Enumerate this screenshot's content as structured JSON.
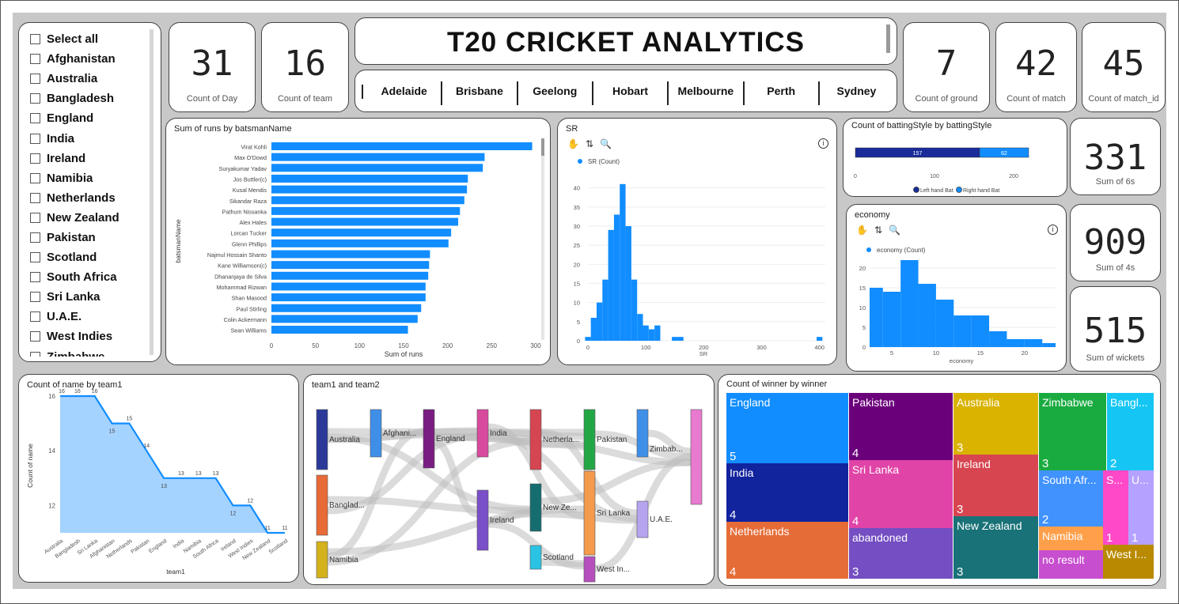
{
  "title": "T20 CRICKET ANALYTICS",
  "kpis": {
    "day": {
      "value": "31",
      "label": "Count of Day"
    },
    "team": {
      "value": "16",
      "label": "Count of team"
    },
    "ground": {
      "value": "7",
      "label": "Count of ground"
    },
    "match": {
      "value": "42",
      "label": "Count of match"
    },
    "match_id": {
      "value": "45",
      "label": "Count of match_id"
    },
    "sixes": {
      "value": "331",
      "label": "Sum of 6s"
    },
    "fours": {
      "value": "909",
      "label": "Sum of 4s"
    },
    "wickets": {
      "value": "515",
      "label": "Sum of wickets"
    }
  },
  "slicer": {
    "items": [
      "Select all",
      "Afghanistan",
      "Australia",
      "Bangladesh",
      "England",
      "India",
      "Ireland",
      "Namibia",
      "Netherlands",
      "New Zealand",
      "Pakistan",
      "Scotland",
      "South Africa",
      "Sri Lanka",
      "U.A.E.",
      "West Indies",
      "Zimbabwe"
    ]
  },
  "venues": [
    "Adelaide",
    "Brisbane",
    "Geelong",
    "Hobart",
    "Melbourne",
    "Perth",
    "Sydney"
  ],
  "runs_chart": {
    "title": "Sum of runs by batsmanName",
    "xlabel": "Sum of runs",
    "ylabel": "batsmanName",
    "chart_data": {
      "type": "bar",
      "orientation": "horizontal",
      "xlim": [
        0,
        300
      ],
      "ticks": [
        0,
        50,
        100,
        150,
        200,
        250,
        300
      ],
      "categories": [
        "Virat Kohli",
        "Max O'Dowd",
        "Suryakumar Yadav",
        "Jos Buttler(c)",
        "Kusal Mendis",
        "Sikandar Raza",
        "Pathum Nissanka",
        "Alex Hales",
        "Lorcan Tucker",
        "Glenn Phillips",
        "Najmul Hossain Shanto",
        "Kane Williamson(c)",
        "Dhananjaya de Silva",
        "Mohammad Rizwan",
        "Shan Masood",
        "Paul Stirling",
        "Colin Ackermann",
        "Sean Williams"
      ],
      "values": [
        296,
        242,
        240,
        223,
        222,
        219,
        214,
        212,
        204,
        201,
        180,
        179,
        178,
        175,
        175,
        170,
        166,
        155
      ],
      "color": "#118DFF"
    }
  },
  "sr_chart": {
    "title": "SR",
    "legend": "SR (Count)",
    "chart_data": {
      "type": "histogram",
      "bin_width": 10,
      "bin_start": -5,
      "xlim": [
        0,
        410
      ],
      "ylim": [
        0,
        42
      ],
      "xticks": [
        0,
        100,
        200,
        300,
        400
      ],
      "yticks": [
        0,
        5,
        10,
        15,
        20,
        25,
        30,
        35,
        40
      ],
      "values": [
        1,
        6,
        10,
        16,
        29,
        33,
        41,
        30,
        16,
        7,
        4,
        3,
        4,
        0,
        0,
        1,
        1,
        0,
        0,
        0,
        0,
        0,
        0,
        0,
        0,
        0,
        0,
        0,
        0,
        0,
        0,
        0,
        0,
        0,
        0,
        0,
        0,
        0,
        0,
        0,
        1
      ]
    }
  },
  "style_chart": {
    "title": "Count of battingStyle by battingStyle",
    "chart_data": {
      "type": "bar",
      "stacked": true,
      "xlim": [
        0,
        230
      ],
      "ticks": [
        0,
        100,
        200
      ],
      "series": [
        {
          "name": "Left hand Bat",
          "value": 157,
          "color": "#1a2c9a"
        },
        {
          "name": "Right hand Bat",
          "value": 62,
          "color": "#118DFF"
        }
      ]
    }
  },
  "economy_chart": {
    "title": "economy",
    "legend": "economy (Count)",
    "chart_data": {
      "type": "histogram",
      "xlim": [
        2.5,
        23.5
      ],
      "ylim": [
        0,
        24
      ],
      "xticks": [
        5,
        10,
        15,
        20
      ],
      "yticks": [
        0,
        5,
        10,
        15,
        20
      ],
      "bins": [
        [
          2.5,
          4,
          15
        ],
        [
          4,
          6,
          14
        ],
        [
          6,
          8,
          22
        ],
        [
          8,
          10,
          16
        ],
        [
          10,
          12,
          12
        ],
        [
          12,
          14,
          8
        ],
        [
          14,
          16,
          8
        ],
        [
          16,
          18,
          4
        ],
        [
          18,
          20,
          2
        ],
        [
          20,
          22,
          2
        ],
        [
          22,
          23.5,
          1
        ]
      ]
    }
  },
  "team_chart": {
    "title": "Count of name by team1",
    "xlabel": "team1",
    "ylabel": "Count of name",
    "chart_data": {
      "type": "area",
      "ylim": [
        11,
        16
      ],
      "yticks": [
        12,
        14,
        16
      ],
      "categories": [
        "Australia",
        "Bangladesh",
        "Sri Lanka",
        "Afghanistan",
        "Netherlands",
        "Pakistan",
        "England",
        "India",
        "Namibia",
        "South Africa",
        "Ireland",
        "West Indies",
        "New Zealand",
        "Scotland"
      ],
      "values": [
        16,
        16,
        16,
        15,
        15,
        14,
        13,
        13,
        13,
        13,
        12,
        12,
        11,
        11
      ]
    }
  },
  "sankey": {
    "title": "team1 and team2",
    "nodes": [
      "Australia",
      "Afghani...",
      "England",
      "India",
      "Netherla...",
      "Pakistan",
      "Zimbab...",
      "Banglad...",
      "Ireland",
      "New Ze...",
      "Sri Lanka",
      "U.A.E.",
      "Namibia",
      "Scotland",
      "West In..."
    ]
  },
  "treemap": {
    "title": "Count of winner by winner",
    "chart_data": {
      "type": "treemap",
      "items": [
        {
          "label": "England",
          "value": 5
        },
        {
          "label": "India",
          "value": 4
        },
        {
          "label": "Netherlands",
          "value": 4
        },
        {
          "label": "Pakistan",
          "value": 4
        },
        {
          "label": "Sri Lanka",
          "value": 4
        },
        {
          "label": "abandoned",
          "value": 3
        },
        {
          "label": "Australia",
          "value": 3
        },
        {
          "label": "Ireland",
          "value": 3
        },
        {
          "label": "New Zealand",
          "value": 3
        },
        {
          "label": "Zimbabwe",
          "value": 3
        },
        {
          "label": "Bangl...",
          "value": 2
        },
        {
          "label": "South Afr...",
          "value": 2
        },
        {
          "label": "S...",
          "value": 1
        },
        {
          "label": "U...",
          "value": 1
        },
        {
          "label": "Namibia",
          "value": ""
        },
        {
          "label": "no result",
          "value": ""
        },
        {
          "label": "West I...",
          "value": ""
        }
      ]
    }
  },
  "colors": {
    "accent": "#118DFF",
    "dark_blue": "#12239E"
  }
}
